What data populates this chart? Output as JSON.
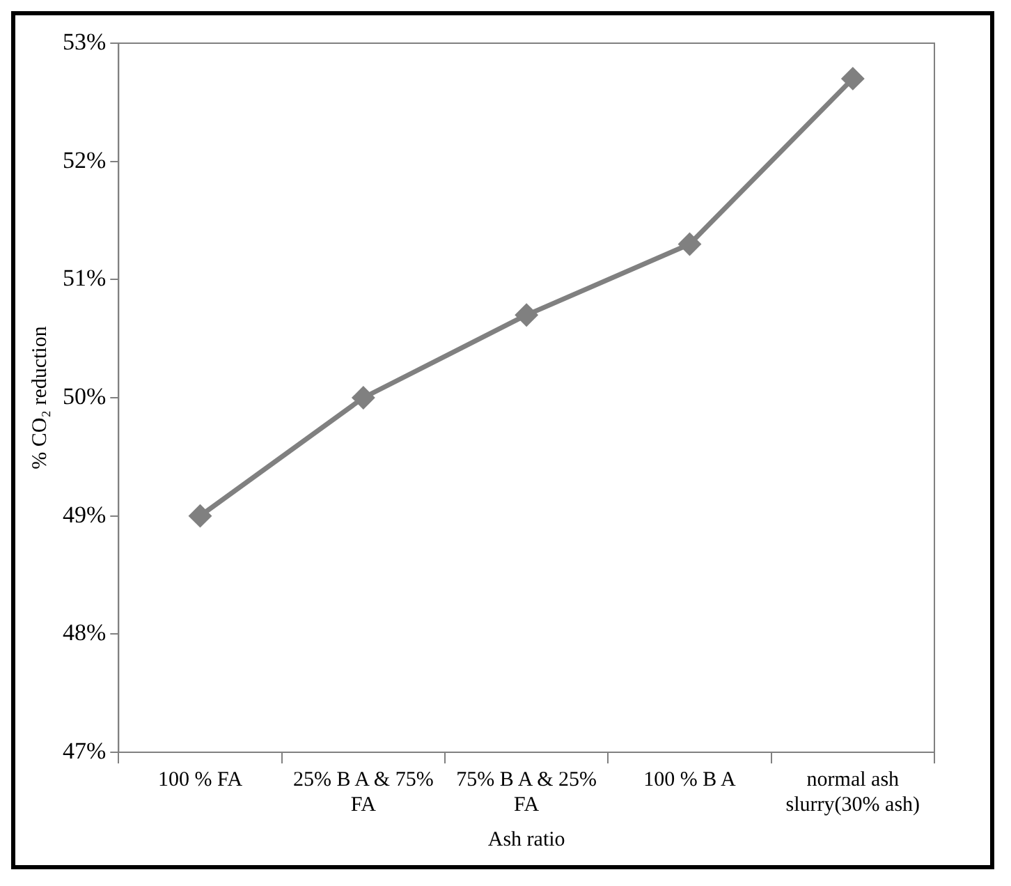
{
  "chart_data": {
    "type": "line",
    "xlabel": "Ash ratio",
    "ylabel": "% CO₂ reduction",
    "categories": [
      "100 % FA",
      "25% B A & 75% FA",
      "75% B A & 25% FA",
      "100 % B A",
      "normal ash slurry(30% ash)"
    ],
    "series": [
      {
        "color": "#808080",
        "values": [
          49.0,
          50.0,
          50.7,
          51.3,
          52.7
        ]
      }
    ],
    "ylim": [
      47,
      53
    ],
    "yticks": [
      {
        "value": 47,
        "label": "47%"
      },
      {
        "value": 48,
        "label": "48%"
      },
      {
        "value": 49,
        "label": "49%"
      },
      {
        "value": 50,
        "label": "50%"
      },
      {
        "value": 51,
        "label": "51%"
      },
      {
        "value": 52,
        "label": "52%"
      },
      {
        "value": 53,
        "label": "53%"
      }
    ],
    "grid": false,
    "legend": false,
    "marker": "diamond",
    "line_style": "solid"
  }
}
